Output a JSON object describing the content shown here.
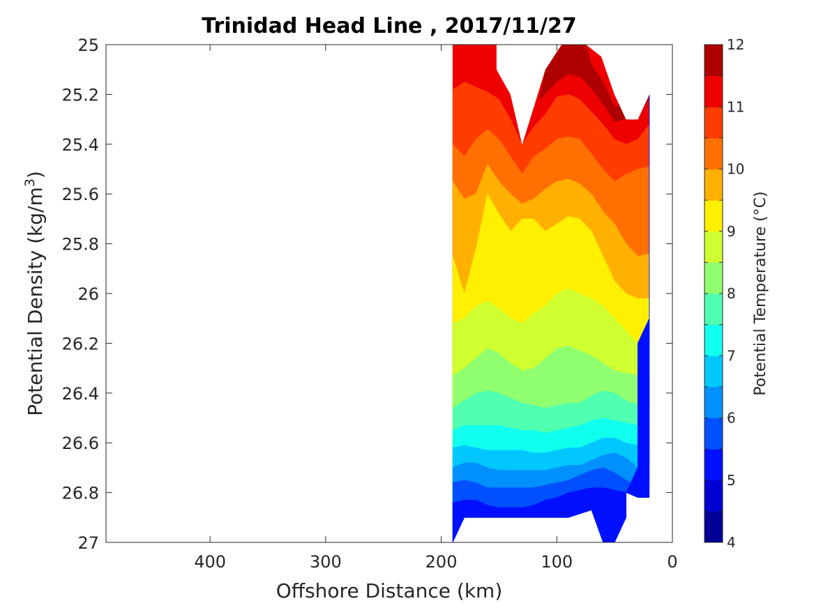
{
  "chart_data": {
    "type": "filled-contour",
    "title": "Trinidad Head Line , 2017/11/27",
    "xlabel": "Offshore Distance (km)",
    "ylabel_main": "Potential Density (kg/m",
    "ylabel_sup": "3",
    "ylabel_end": ")",
    "x_axis": {
      "min": 0,
      "max": 490,
      "reversed": true,
      "ticks": [
        400,
        300,
        200,
        100,
        0
      ],
      "tick_labels": [
        "400",
        "300",
        "200",
        "100",
        "0"
      ]
    },
    "y_axis": {
      "min": 25,
      "max": 27,
      "reversed": true,
      "ticks": [
        25,
        25.2,
        25.4,
        25.6,
        25.8,
        26,
        26.2,
        26.4,
        26.6,
        26.8,
        27
      ],
      "tick_labels": [
        "25",
        "25.2",
        "25.4",
        "25.6",
        "25.8",
        "26",
        "26.2",
        "26.4",
        "26.6",
        "26.8",
        "27"
      ]
    },
    "colorbar": {
      "label": "Potential Temperature (°C)",
      "min": 4,
      "max": 12,
      "step": 0.5,
      "tick_labels": [
        "4",
        "5",
        "6",
        "7",
        "8",
        "9",
        "10",
        "11",
        "12"
      ],
      "colors": [
        "#000096",
        "#0000d2",
        "#0010ff",
        "#0050ff",
        "#0090ff",
        "#00c8ff",
        "#10ffef",
        "#50ffaf",
        "#90ff6f",
        "#cfff30",
        "#ffef00",
        "#ffb000",
        "#ff7000",
        "#ff3c00",
        "#ef0000",
        "#af0000"
      ]
    },
    "data_columns": {
      "distance_km": [
        190,
        180,
        170,
        160,
        150,
        140,
        130,
        120,
        110,
        100,
        90,
        80,
        70,
        60,
        50,
        40,
        30,
        20
      ],
      "level_boundaries": [
        {
          "level": 12.0,
          "depth": [
            null,
            null,
            null,
            null,
            null,
            null,
            null,
            null,
            25.1,
            25.03,
            25.0,
            25.0,
            25.08,
            25.15,
            25.25,
            null,
            null,
            null
          ]
        },
        {
          "level": 11.5,
          "depth": [
            25.0,
            25.02,
            25.06,
            25.1,
            25.15,
            25.22,
            25.3,
            25.25,
            25.2,
            25.15,
            25.12,
            25.13,
            25.18,
            25.24,
            25.31,
            25.3,
            25.3,
            25.22
          ]
        },
        {
          "level": 11.0,
          "depth": [
            25.18,
            25.15,
            25.17,
            25.19,
            25.22,
            25.3,
            25.4,
            25.33,
            25.28,
            25.21,
            25.2,
            25.22,
            25.27,
            25.32,
            25.38,
            25.4,
            25.38,
            25.32
          ]
        },
        {
          "level": 10.5,
          "depth": [
            25.4,
            25.45,
            25.38,
            25.34,
            25.38,
            25.45,
            25.52,
            25.45,
            25.42,
            25.38,
            25.37,
            25.38,
            25.44,
            25.5,
            25.55,
            25.52,
            25.5,
            25.49
          ]
        },
        {
          "level": 10.0,
          "depth": [
            25.55,
            25.62,
            25.6,
            25.48,
            25.55,
            25.6,
            25.64,
            25.62,
            25.58,
            25.55,
            25.54,
            25.56,
            25.6,
            25.67,
            25.72,
            25.8,
            25.85,
            25.84
          ]
        },
        {
          "level": 9.5,
          "depth": [
            25.85,
            26.0,
            25.82,
            25.6,
            25.68,
            25.75,
            25.7,
            25.7,
            25.75,
            25.72,
            25.69,
            25.7,
            25.75,
            25.85,
            25.95,
            26.0,
            26.02,
            26.02
          ]
        },
        {
          "level": 9.0,
          "depth": [
            26.12,
            26.1,
            26.05,
            26.03,
            26.06,
            26.1,
            26.12,
            26.08,
            26.05,
            26.0,
            25.98,
            26.0,
            26.02,
            26.05,
            26.1,
            26.15,
            26.2,
            26.1
          ]
        },
        {
          "level": 8.5,
          "depth": [
            26.33,
            26.3,
            26.26,
            26.22,
            26.24,
            26.28,
            26.31,
            26.3,
            26.26,
            26.22,
            26.21,
            26.23,
            26.25,
            26.28,
            26.31,
            26.32,
            26.33,
            26.33
          ]
        },
        {
          "level": 8.0,
          "depth": [
            26.46,
            26.43,
            26.4,
            26.39,
            26.4,
            26.42,
            26.44,
            26.45,
            26.46,
            26.45,
            26.44,
            26.44,
            26.41,
            26.39,
            26.4,
            26.43,
            26.45,
            26.45
          ]
        },
        {
          "level": 7.5,
          "depth": [
            26.55,
            26.53,
            26.53,
            26.53,
            26.53,
            26.54,
            26.55,
            26.55,
            26.56,
            26.55,
            26.54,
            26.53,
            26.51,
            26.5,
            26.51,
            26.52,
            26.53,
            26.53
          ]
        },
        {
          "level": 7.0,
          "depth": [
            26.62,
            26.61,
            26.62,
            26.63,
            26.63,
            26.63,
            26.63,
            26.64,
            26.64,
            26.63,
            26.62,
            26.62,
            26.6,
            26.58,
            26.58,
            26.6,
            26.61,
            26.61
          ]
        },
        {
          "level": 6.5,
          "depth": [
            26.7,
            26.68,
            26.68,
            26.7,
            26.71,
            26.71,
            26.71,
            26.71,
            26.71,
            26.7,
            26.69,
            26.69,
            26.67,
            26.65,
            26.64,
            26.66,
            26.7,
            26.7
          ]
        },
        {
          "level": 6.0,
          "depth": [
            26.76,
            26.75,
            26.76,
            26.78,
            26.78,
            26.78,
            26.78,
            26.78,
            26.77,
            26.76,
            26.75,
            26.73,
            26.71,
            26.7,
            26.72,
            26.75,
            26.77,
            26.77
          ]
        },
        {
          "level": 5.5,
          "depth": [
            26.84,
            26.83,
            26.83,
            26.85,
            26.86,
            26.86,
            26.86,
            26.85,
            26.83,
            26.82,
            26.8,
            26.79,
            26.78,
            26.78,
            26.79,
            26.8,
            26.82,
            26.82
          ]
        }
      ],
      "bottom_profile": [
        {
          "distance": 190,
          "depth": 27.0
        },
        {
          "distance": 180,
          "depth": 26.9
        },
        {
          "distance": 170,
          "depth": 26.9
        },
        {
          "distance": 100,
          "depth": 26.9
        },
        {
          "distance": 90,
          "depth": 26.9
        },
        {
          "distance": 70,
          "depth": 26.87
        },
        {
          "distance": 60,
          "depth": 27.0
        },
        {
          "distance": 50,
          "depth": 27.0
        },
        {
          "distance": 40,
          "depth": 26.9
        },
        {
          "distance": 40,
          "depth": 26.8
        },
        {
          "distance": 30,
          "depth": 26.7
        },
        {
          "distance": 30,
          "depth": 26.2
        },
        {
          "distance": 20,
          "depth": 26.1
        },
        {
          "distance": 20,
          "depth": 25.2
        }
      ]
    },
    "grid": false
  }
}
